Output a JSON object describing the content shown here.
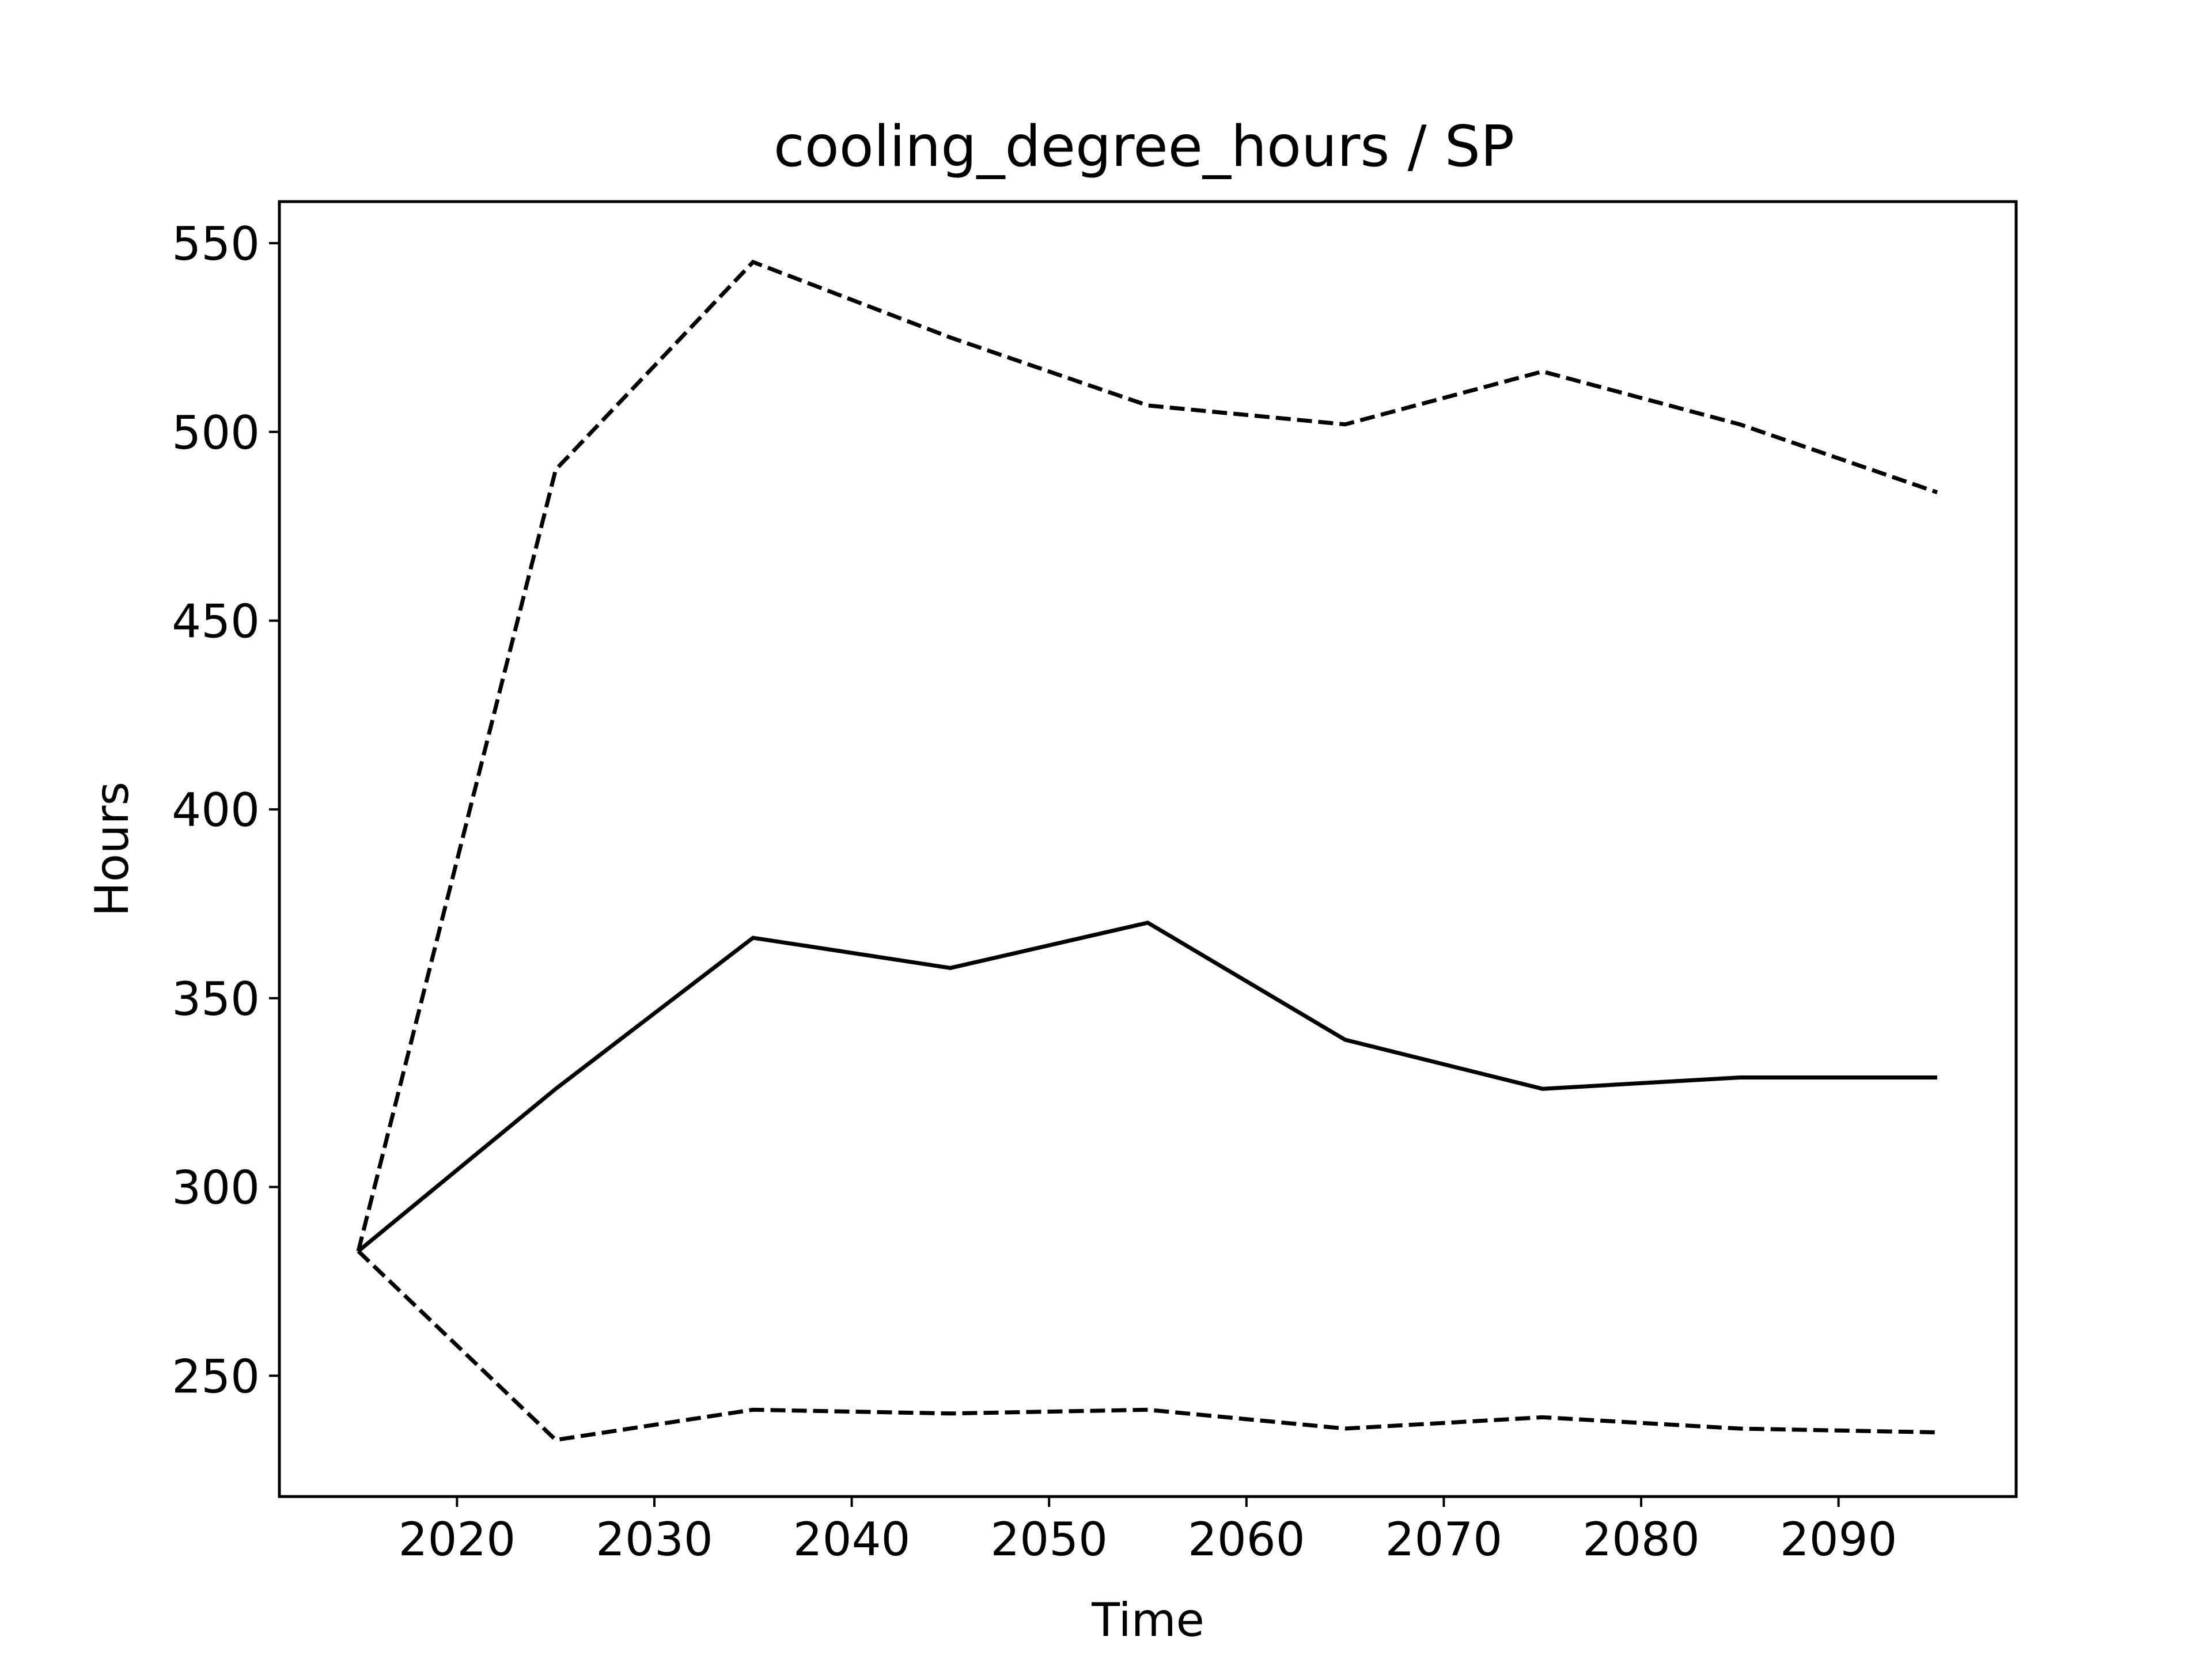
{
  "chart_data": {
    "type": "line",
    "title": "cooling_degree_hours / SP",
    "xlabel": "Time",
    "ylabel": "Hours",
    "xlim": [
      2011,
      2099
    ],
    "ylim": [
      218,
      561
    ],
    "xticks": [
      2020,
      2030,
      2040,
      2050,
      2060,
      2070,
      2080,
      2090
    ],
    "yticks": [
      250,
      300,
      350,
      400,
      450,
      500,
      550
    ],
    "grid": false,
    "legend": "none",
    "x": [
      2015,
      2025,
      2035,
      2045,
      2055,
      2065,
      2075,
      2085,
      2095
    ],
    "series": [
      {
        "style": "solid",
        "color": "#000000",
        "values": [
          283,
          326,
          366,
          358,
          370,
          339,
          326,
          329,
          329
        ]
      },
      {
        "style": "dashed",
        "color": "#000000",
        "values": [
          283,
          490,
          545,
          525,
          507,
          502,
          516,
          502,
          484
        ]
      },
      {
        "style": "dashed",
        "color": "#000000",
        "values": [
          283,
          233,
          241,
          240,
          241,
          236,
          239,
          236,
          235
        ]
      }
    ]
  }
}
